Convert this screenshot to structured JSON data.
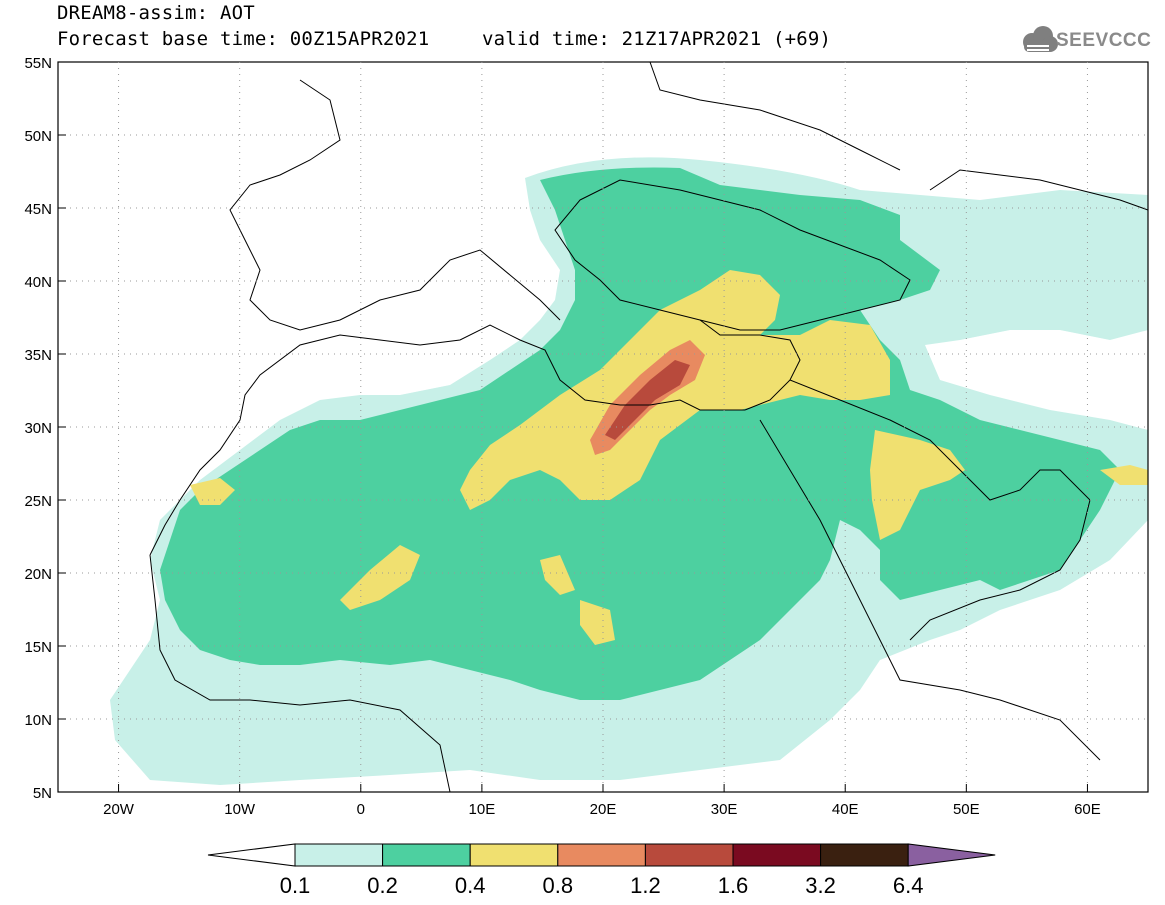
{
  "header": {
    "line1": "DREAM8-assim: AOT",
    "line2a": "Forecast base time: 00Z15APR2021",
    "line2b": "valid time: 21Z17APR2021 (+69)",
    "logo_text": "SEEVCCC"
  },
  "map": {
    "lon_range": [
      -25,
      65
    ],
    "lat_range": [
      5,
      55
    ],
    "lat_labels": [
      "55N",
      "50N",
      "45N",
      "40N",
      "35N",
      "30N",
      "25N",
      "20N",
      "15N",
      "10N",
      "5N"
    ],
    "lon_labels": [
      "20W",
      "10W",
      "0",
      "10E",
      "20E",
      "30E",
      "40E",
      "50E",
      "60E"
    ],
    "grid": "dotted"
  },
  "colorbar": {
    "labels": [
      "0.1",
      "0.2",
      "0.4",
      "0.8",
      "1.2",
      "1.6",
      "3.2",
      "6.4"
    ],
    "colors": [
      "#ffffff",
      "#c8f0e8",
      "#4dd0a0",
      "#f0e070",
      "#e88a60",
      "#b84a3c",
      "#7a0a20",
      "#3a2010",
      "#8a60a0"
    ]
  }
}
